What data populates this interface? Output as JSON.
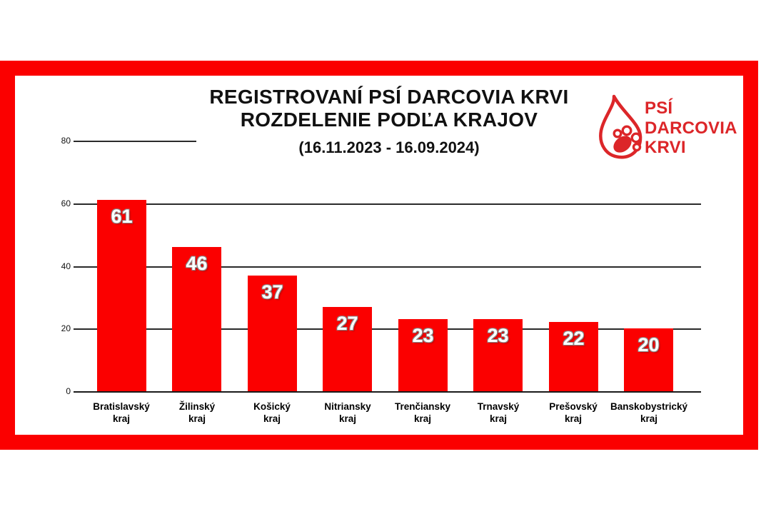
{
  "poster": {
    "title_line1": "REGISTROVANÍ PSÍ DARCOVIA KRVI",
    "title_line2": "ROZDELENIE PODĽA KRAJOV",
    "subtitle": "(16.11.2023 - 16.09.2024)"
  },
  "logo": {
    "icon": "blood-drop-paw-icon",
    "line1": "PSÍ",
    "line2": "DARCOVIA",
    "line3": "KRVI"
  },
  "colors": {
    "frame_red": "#FB0000",
    "bar_red": "#FB0000",
    "logo_red": "#DC2629",
    "title_black": "#111111",
    "value_label_white": "#FFFFFF",
    "gridline": "#2A2A2A"
  },
  "chart_data": {
    "type": "bar",
    "title": "REGISTROVANÍ PSÍ DARCOVIA KRVI — ROZDELENIE PODĽA KRAJOV",
    "subtitle": "(16.11.2023 - 16.09.2024)",
    "categories": [
      "Bratislavský kraj",
      "Žilinský kraj",
      "Košický kraj",
      "Nitriansky kraj",
      "Trenčiansky kraj",
      "Trnavský kraj",
      "Prešovský kraj",
      "Banskobystrický kraj"
    ],
    "values": [
      61,
      46,
      37,
      27,
      23,
      23,
      22,
      20
    ],
    "xlabel": "",
    "ylabel": "",
    "ylim": [
      0,
      80
    ],
    "y_ticks": [
      0,
      20,
      40,
      60,
      80
    ],
    "grid": true,
    "legend": false,
    "bar_color": "#FB0000",
    "value_labels_shown": true,
    "note": "top gridline (80) is drawn short, only near the y-axis"
  }
}
